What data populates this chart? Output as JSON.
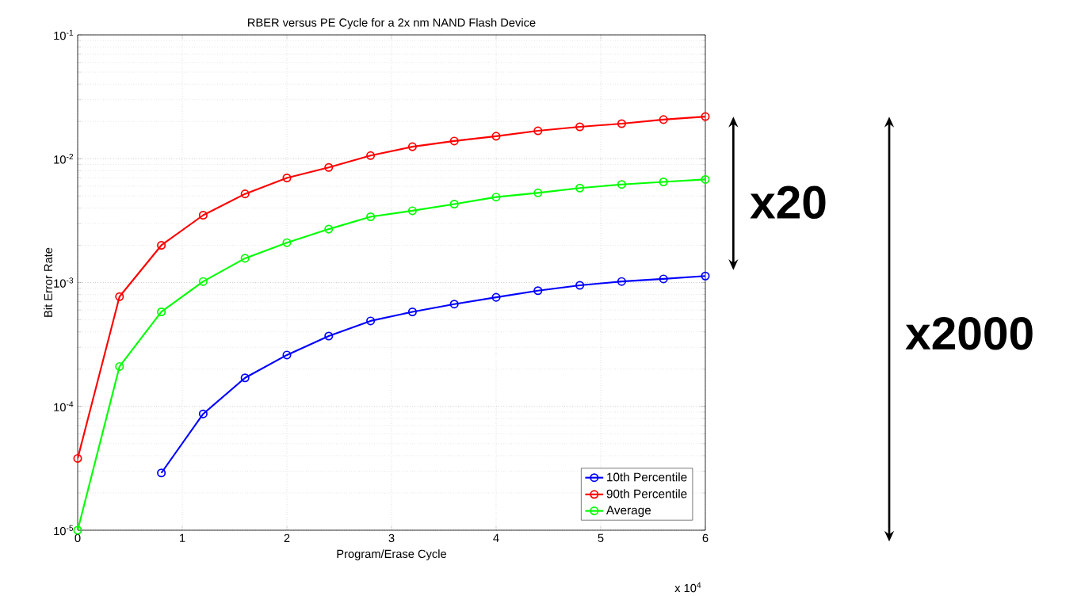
{
  "chart_data": {
    "type": "line",
    "title": "RBER versus PE Cycle for a 2x nm NAND Flash Device",
    "xlabel": "Program/Erase Cycle",
    "ylabel": "Bit Error Rate",
    "x": [
      0,
      0.4,
      0.8,
      1.2,
      1.6,
      2.0,
      2.4,
      2.8,
      3.2,
      3.6,
      4.0,
      4.4,
      4.8,
      5.2,
      5.6,
      6.0
    ],
    "series": [
      {
        "name": "10th Percentile",
        "color": "#0000ff",
        "values": [
          null,
          null,
          2.9e-05,
          8.7e-05,
          0.00017,
          0.00026,
          0.00037,
          0.00049,
          0.00058,
          0.00067,
          0.00076,
          0.00086,
          0.00095,
          0.00102,
          0.00107,
          0.00113
        ]
      },
      {
        "name": "90th Percentile",
        "color": "#ff0000",
        "values": [
          3.8e-05,
          0.00077,
          0.002,
          0.0035,
          0.0052,
          0.007,
          0.0085,
          0.0106,
          0.0125,
          0.0139,
          0.0152,
          0.0168,
          0.0181,
          0.0192,
          0.0207,
          0.0219
        ]
      },
      {
        "name": "Average",
        "color": "#00ff00",
        "values": [
          1e-05,
          0.00021,
          0.00058,
          0.00102,
          0.00157,
          0.0021,
          0.0027,
          0.0034,
          0.0038,
          0.0043,
          0.0049,
          0.0053,
          0.0058,
          0.0062,
          0.0065,
          0.0068
        ]
      }
    ],
    "xlim": [
      0,
      6
    ],
    "ylim": [
      1e-05,
      0.1
    ],
    "xticks": [
      0,
      1,
      2,
      3,
      4,
      5,
      6
    ],
    "yticks": [
      {
        "value": 1e-05,
        "label": "10$^{-5}$"
      },
      {
        "value": 0.0001,
        "label": "10$^{-4}$"
      },
      {
        "value": 0.001,
        "label": "10$^{-3}$"
      },
      {
        "value": 0.01,
        "label": "10$^{-2}$"
      },
      {
        "value": 0.1,
        "label": "10$^{-1}$"
      }
    ],
    "log": "y",
    "grid": true,
    "legend": "bottom right",
    "marker": "circle",
    "line_style": "solid",
    "annotations": [
      "x 10$^{4}$",
      "x20",
      "x2000"
    ]
  }
}
